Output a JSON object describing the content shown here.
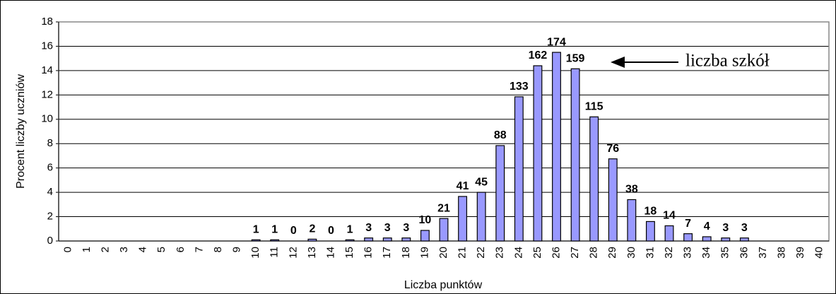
{
  "chart_data": {
    "type": "bar",
    "xlabel": "Liczba punktów",
    "ylabel": "Procent liczby uczniów",
    "annotation": "liczba szkół",
    "categories": [
      "0",
      "1",
      "2",
      "3",
      "4",
      "5",
      "6",
      "7",
      "8",
      "9",
      "10",
      "11",
      "12",
      "13",
      "14",
      "15",
      "16",
      "17",
      "18",
      "19",
      "20",
      "21",
      "22",
      "23",
      "24",
      "25",
      "26",
      "27",
      "28",
      "29",
      "30",
      "31",
      "32",
      "33",
      "34",
      "35",
      "36",
      "37",
      "38",
      "39",
      "40"
    ],
    "values": [
      0,
      0,
      0,
      0,
      0,
      0,
      0,
      0,
      0,
      0,
      0.1,
      0.1,
      0,
      0.15,
      0,
      0.1,
      0.25,
      0.25,
      0.25,
      0.87,
      1.85,
      3.66,
      4.0,
      7.84,
      11.85,
      14.4,
      15.5,
      14.15,
      10.2,
      6.75,
      3.4,
      1.6,
      1.25,
      0.6,
      0.35,
      0.25,
      0.25,
      0,
      0,
      0,
      0
    ],
    "school_counts": [
      null,
      null,
      null,
      null,
      null,
      null,
      null,
      null,
      null,
      null,
      "1",
      "1",
      "0",
      "2",
      "0",
      "1",
      "3",
      "3",
      "3",
      "10",
      "21",
      "41",
      "45",
      "88",
      "133",
      "162",
      "174",
      "159",
      "115",
      "76",
      "38",
      "18",
      "14",
      "7",
      "4",
      "3",
      "3",
      null,
      null,
      null,
      null
    ],
    "color": "#9999ff",
    "ylim": [
      0,
      18
    ],
    "yticks": [
      0,
      2,
      4,
      6,
      8,
      10,
      12,
      14,
      16,
      18
    ],
    "grid": true
  }
}
